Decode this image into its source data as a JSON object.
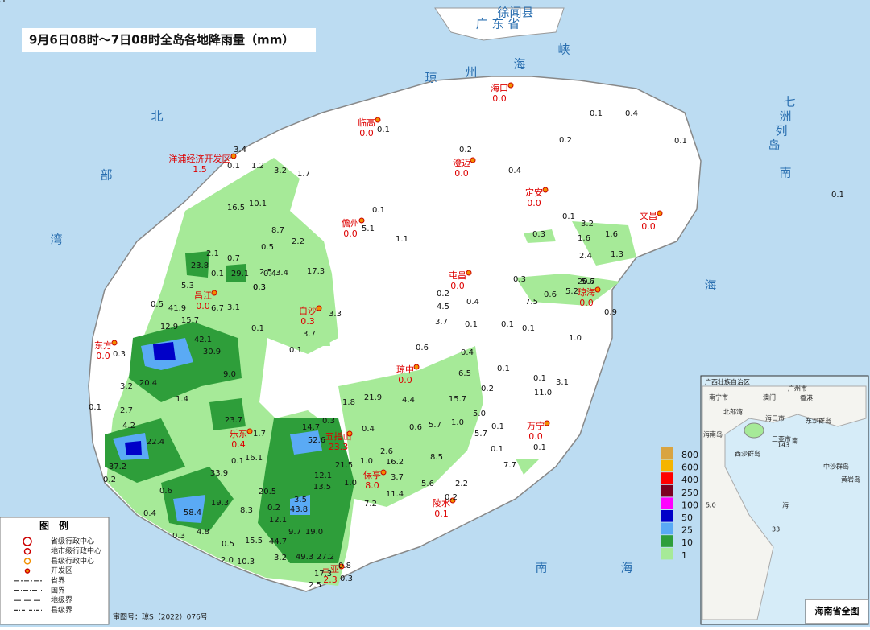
{
  "title": "9月6日08时～7日08时全岛各地降雨量（mm）",
  "sea_labels": [
    "北",
    "部",
    "湾",
    "琼",
    "州",
    "海",
    "峡",
    "南",
    "海",
    "南",
    "海",
    "广 东 省",
    "徐闻县",
    "七",
    "洲",
    "列",
    "岛"
  ],
  "cities": [
    {
      "name": "海口",
      "value": "0.0"
    },
    {
      "name": "临高",
      "value": "0.0"
    },
    {
      "name": "澄迈",
      "value": "0.0"
    },
    {
      "name": "定安",
      "value": "0.0"
    },
    {
      "name": "文昌",
      "value": "0.0"
    },
    {
      "name": "儋州",
      "value": "0.0"
    },
    {
      "name": "屯昌",
      "value": "0.0"
    },
    {
      "name": "琼海",
      "value": "0.0"
    },
    {
      "name": "昌江",
      "value": "0.0"
    },
    {
      "name": "白沙",
      "value": "0.3"
    },
    {
      "name": "东方",
      "value": "0.0"
    },
    {
      "name": "琼中",
      "value": "0.0"
    },
    {
      "name": "万宁",
      "value": "0.0"
    },
    {
      "name": "乐东",
      "value": "0.4"
    },
    {
      "name": "五指山",
      "value": "23.3"
    },
    {
      "name": "保亭",
      "value": "8.0"
    },
    {
      "name": "陵水",
      "value": "0.1"
    },
    {
      "name": "三亚",
      "value": "2.3"
    },
    {
      "name": "洋浦经济开发区",
      "value": "1.5"
    }
  ],
  "stations": [
    "3.4",
    "0.1",
    "1.2",
    "3.2",
    "1.7",
    "16.5",
    "10.1",
    "8.7",
    "0.5",
    "2.2",
    "0.4",
    "0.3",
    "0.1",
    "23.8",
    "2.1",
    "0.7",
    "29.1",
    "2.5",
    "3.4",
    "17.3",
    "5.3",
    "0.1",
    "6.7",
    "3.1",
    "0.3",
    "0.5",
    "41.9",
    "15.7",
    "12.9",
    "42.1",
    "30.9",
    "9.0",
    "3.3",
    "3.7",
    "0.1",
    "0.3",
    "20.4",
    "3.2",
    "1.4",
    "2.7",
    "0.1",
    "4.2",
    "22.4",
    "37.2",
    "0.2",
    "23.7",
    "1.7",
    "16.1",
    "0.1",
    "33.9",
    "0.6",
    "19.3",
    "58.4",
    "0.4",
    "8.3",
    "0.3",
    "4.8",
    "0.5",
    "2.0",
    "10.3",
    "15.5",
    "44.7",
    "12.1",
    "43.8",
    "9.7",
    "19.0",
    "3.2",
    "49.3",
    "27.2",
    "17.3",
    "0.8",
    "0.3",
    "2.5",
    "14.7",
    "52.6",
    "0.3",
    "21.5",
    "12.1",
    "13.5",
    "1.0",
    "20.5",
    "3.5",
    "0.2",
    "0.4",
    "1.0",
    "1.8",
    "21.9",
    "4.4",
    "15.7",
    "6.5",
    "0.4",
    "0.6",
    "2.6",
    "16.2",
    "3.7",
    "11.4",
    "7.2",
    "0.6",
    "5.7",
    "1.0",
    "5.0",
    "5.7",
    "8.5",
    "5.6",
    "2.2",
    "0.2",
    "0.1",
    "0.1",
    "7.7",
    "0.1",
    "0.2",
    "4.5",
    "0.4",
    "0.1",
    "3.7",
    "0.3",
    "7.5",
    "0.6",
    "5.2",
    "5.6",
    "0.1",
    "3.1",
    "11.0",
    "0.2",
    "0.1",
    "0.3",
    "3.2",
    "1.6",
    "1.6",
    "2.4",
    "1.3",
    "20.7",
    "0.1",
    "0.9",
    "1.0",
    "0.1",
    "0.1",
    "0.2",
    "0.1",
    "0.1",
    "5.1",
    "0.4",
    "0.1",
    "1.1",
    "0.2",
    "0.1",
    "0.4",
    "0.1",
    "0.1",
    "0.1"
  ],
  "color_scale": [
    {
      "label": "800",
      "color": "#d9a441"
    },
    {
      "label": "600",
      "color": "#f5b400"
    },
    {
      "label": "400",
      "color": "#ff0000"
    },
    {
      "label": "250",
      "color": "#7a0020"
    },
    {
      "label": "100",
      "color": "#ff00ff"
    },
    {
      "label": "50",
      "color": "#0000c8"
    },
    {
      "label": "25",
      "color": "#5aaaf5"
    },
    {
      "label": "10",
      "color": "#2e9e3a"
    },
    {
      "label": "1",
      "color": "#a6ea98"
    }
  ],
  "legend": {
    "title": "图　例",
    "items": [
      "省级行政中心",
      "地市级行政中心",
      "县级行政中心",
      "开发区",
      "省界",
      "国界",
      "地级界",
      "县级界"
    ]
  },
  "footer": "审图号：琼S（2022）076号",
  "inset": {
    "title": "海南省全图",
    "labels": [
      "广西壮族自治区",
      "南宁市",
      "广州市",
      "澳门",
      "香港",
      "海口市",
      "三亚市",
      "北部湾",
      "海南岛",
      "西沙群岛",
      "中沙群岛",
      "东沙群岛",
      "黄岩岛",
      "南",
      "海",
      "143",
      "33",
      "5.0"
    ]
  }
}
